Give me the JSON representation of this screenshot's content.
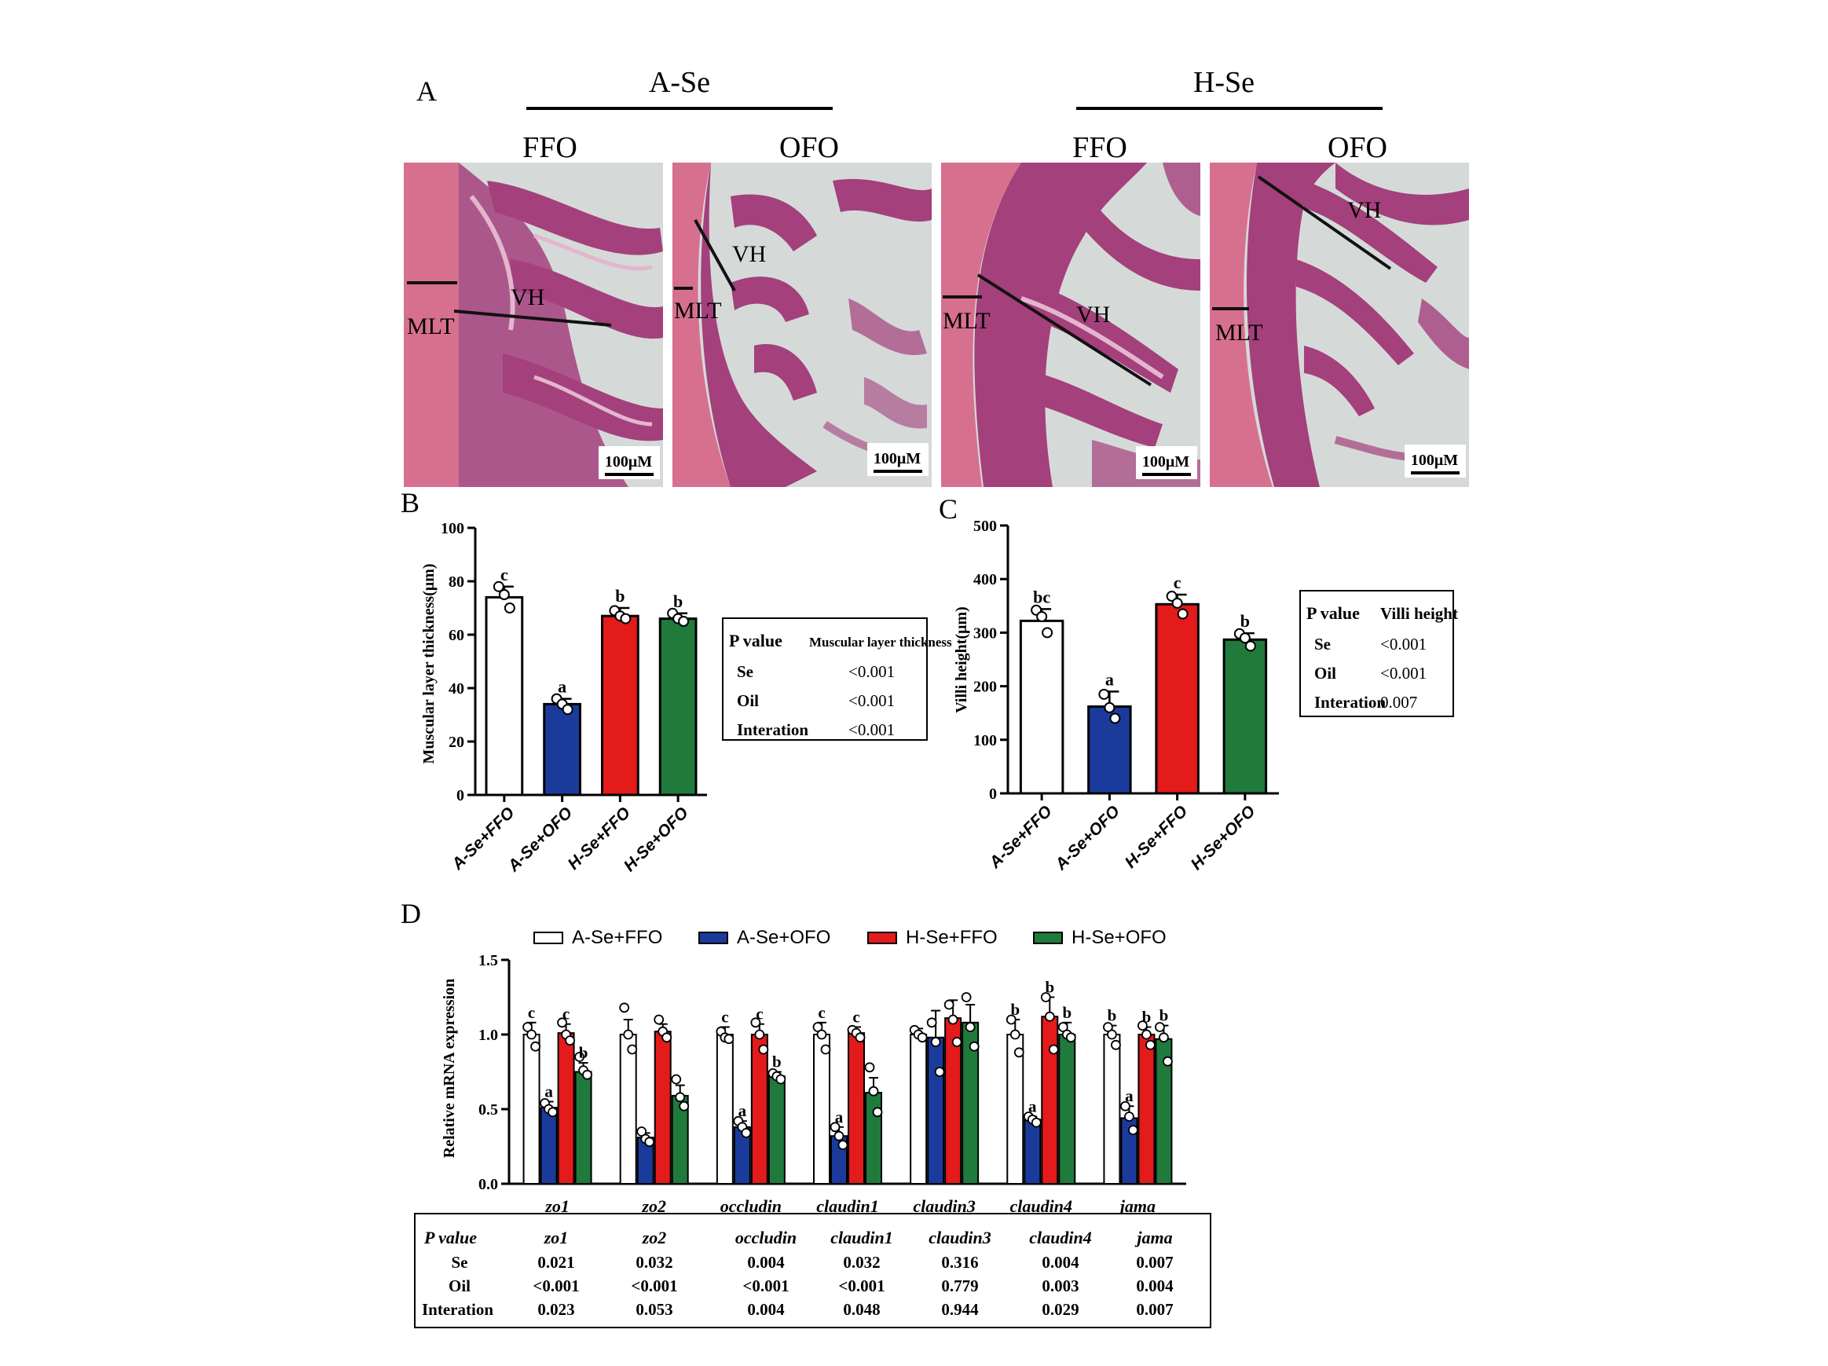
{
  "panel_letters": [
    "A",
    "B",
    "C",
    "D"
  ],
  "panelA": {
    "groups": [
      {
        "name": "A-Se",
        "diets": [
          "FFO",
          "OFO"
        ]
      },
      {
        "name": "H-Se",
        "diets": [
          "FFO",
          "OFO"
        ]
      }
    ],
    "micrographs": [
      {
        "labels": [
          "VH",
          "MLT"
        ],
        "scale_bar": "100μM"
      },
      {
        "labels": [
          "VH",
          "MLT"
        ],
        "scale_bar": "100μM"
      },
      {
        "labels": [
          "VH",
          "MLT"
        ],
        "scale_bar": "100μM"
      },
      {
        "labels": [
          "VH",
          "MLT"
        ],
        "scale_bar": "100μM"
      }
    ],
    "stain_colors": {
      "background": "#d5dad9",
      "muscle": "#d7708e",
      "villi": "#a4407c",
      "villi_core": "#e3b6cd"
    }
  },
  "chart_data": [
    {
      "type": "bar",
      "panel": "B",
      "ylabel": "Muscular layer thickness(μm)",
      "ylim": [
        0,
        100
      ],
      "yticks": [
        0,
        20,
        40,
        60,
        80,
        100
      ],
      "categories": [
        "A-Se+FFO",
        "A-Se+OFO",
        "H-Se+FFO",
        "H-Se+OFO"
      ],
      "values": [
        74,
        34,
        67,
        66
      ],
      "errors": [
        4,
        2,
        3,
        2
      ],
      "letters": [
        "c",
        "a",
        "b",
        "b"
      ],
      "points": [
        [
          78,
          75,
          70
        ],
        [
          36,
          34,
          32
        ],
        [
          69,
          67,
          66
        ],
        [
          68,
          66,
          65
        ]
      ],
      "colors": [
        "#ffffff",
        "#1b3b9c",
        "#e31b1b",
        "#1f7a3c"
      ],
      "stats_table": {
        "header": [
          "P value",
          "Muscular layer thickness"
        ],
        "rows": [
          [
            "Se",
            "<0.001"
          ],
          [
            "Oil",
            "<0.001"
          ],
          [
            "Interation",
            "<0.001"
          ]
        ]
      }
    },
    {
      "type": "bar",
      "panel": "C",
      "ylabel": "Villi height(μm)",
      "ylim": [
        0,
        500
      ],
      "yticks": [
        0,
        100,
        200,
        300,
        400,
        500
      ],
      "categories": [
        "A-Se+FFO",
        "A-Se+OFO",
        "H-Se+FFO",
        "H-Se+OFO"
      ],
      "values": [
        322,
        162,
        353,
        287
      ],
      "errors": [
        22,
        28,
        18,
        12
      ],
      "letters": [
        "bc",
        "a",
        "c",
        "b"
      ],
      "points": [
        [
          342,
          330,
          300
        ],
        [
          185,
          160,
          140
        ],
        [
          368,
          355,
          335
        ],
        [
          298,
          290,
          275
        ]
      ],
      "colors": [
        "#ffffff",
        "#1b3b9c",
        "#e31b1b",
        "#1f7a3c"
      ],
      "stats_table": {
        "header": [
          "P value",
          "Villi height"
        ],
        "rows": [
          [
            "Se",
            "<0.001"
          ],
          [
            "Oil",
            "<0.001"
          ],
          [
            "Interation",
            "0.007"
          ]
        ]
      }
    },
    {
      "type": "bar",
      "panel": "D",
      "ylabel": "Relative mRNA expression",
      "ylim": [
        0,
        1.5
      ],
      "yticks": [
        0.0,
        0.5,
        1.0,
        1.5
      ],
      "ytick_labels": [
        "0.0",
        "0.5",
        "1.0",
        "1.5"
      ],
      "categories": [
        "zo1",
        "zo2",
        "occludin",
        "claudin1",
        "claudin3",
        "claudin4",
        "jama"
      ],
      "series": [
        {
          "name": "A-Se+FFO",
          "color": "#ffffff",
          "values": [
            1.0,
            1.0,
            1.0,
            1.0,
            1.0,
            1.0,
            1.0
          ],
          "errors": [
            0.08,
            0.1,
            0.05,
            0.08,
            0.04,
            0.1,
            0.06
          ],
          "letters": [
            "c",
            "",
            "c",
            "c",
            "",
            "b",
            "b"
          ],
          "points": [
            [
              1.05,
              1.0,
              0.92
            ],
            [
              1.18,
              1.0,
              0.9
            ],
            [
              1.02,
              0.98,
              0.97
            ],
            [
              1.05,
              1.0,
              0.9
            ],
            [
              1.03,
              1.0,
              0.98
            ],
            [
              1.1,
              1.0,
              0.88
            ],
            [
              1.05,
              1.0,
              0.93
            ]
          ]
        },
        {
          "name": "A-Se+OFO",
          "color": "#1b3b9c",
          "values": [
            0.51,
            0.31,
            0.38,
            0.32,
            0.98,
            0.43,
            0.44
          ],
          "errors": [
            0.04,
            0.03,
            0.04,
            0.06,
            0.18,
            0.02,
            0.08
          ],
          "letters": [
            "a",
            "",
            "a",
            "a",
            "",
            "a",
            "a"
          ],
          "points": [
            [
              0.54,
              0.5,
              0.48
            ],
            [
              0.35,
              0.3,
              0.28
            ],
            [
              0.42,
              0.38,
              0.34
            ],
            [
              0.38,
              0.32,
              0.26
            ],
            [
              1.08,
              0.95,
              0.75
            ],
            [
              0.45,
              0.43,
              0.41
            ],
            [
              0.52,
              0.45,
              0.36
            ]
          ]
        },
        {
          "name": "H-Se+FFO",
          "color": "#e31b1b",
          "values": [
            1.01,
            1.02,
            1.0,
            1.01,
            1.11,
            1.12,
            1.0
          ],
          "errors": [
            0.06,
            0.05,
            0.07,
            0.04,
            0.12,
            0.13,
            0.05
          ],
          "letters": [
            "c",
            "",
            "c",
            "c",
            "",
            "b",
            "b"
          ],
          "points": [
            [
              1.08,
              1.0,
              0.96
            ],
            [
              1.1,
              1.02,
              0.98
            ],
            [
              1.08,
              1.0,
              0.9
            ],
            [
              1.03,
              1.01,
              0.98
            ],
            [
              1.2,
              1.1,
              0.95
            ],
            [
              1.25,
              1.12,
              0.9
            ],
            [
              1.06,
              1.0,
              0.93
            ]
          ]
        },
        {
          "name": "H-Se+OFO",
          "color": "#1f7a3c",
          "values": [
            0.75,
            0.59,
            0.72,
            0.61,
            1.08,
            1.0,
            0.97
          ],
          "errors": [
            0.06,
            0.07,
            0.03,
            0.1,
            0.12,
            0.08,
            0.09
          ],
          "letters": [
            "b",
            "",
            "b",
            "",
            "",
            "b",
            "b"
          ],
          "points": [
            [
              0.85,
              0.76,
              0.73
            ],
            [
              0.7,
              0.58,
              0.52
            ],
            [
              0.74,
              0.72,
              0.7
            ],
            [
              0.78,
              0.62,
              0.48
            ],
            [
              1.25,
              1.05,
              0.92
            ],
            [
              1.05,
              1.0,
              0.98
            ],
            [
              1.05,
              0.98,
              0.82
            ]
          ]
        }
      ],
      "legend": [
        "A-Se+FFO",
        "A-Se+OFO",
        "H-Se+FFO",
        "H-Se+OFO"
      ],
      "stats_table": {
        "header": [
          "P value",
          "zo1",
          "zo2",
          "occludin",
          "claudin1",
          "claudin3",
          "claudin4",
          "jama"
        ],
        "rows": [
          [
            "Se",
            "0.021",
            "0.032",
            "0.004",
            "0.032",
            "0.316",
            "0.004",
            "0.007"
          ],
          [
            "Oil",
            "<0.001",
            "<0.001",
            "<0.001",
            "<0.001",
            "0.779",
            "0.003",
            "0.004"
          ],
          [
            "Interation",
            "0.023",
            "0.053",
            "0.004",
            "0.048",
            "0.944",
            "0.029",
            "0.007"
          ]
        ]
      }
    }
  ]
}
